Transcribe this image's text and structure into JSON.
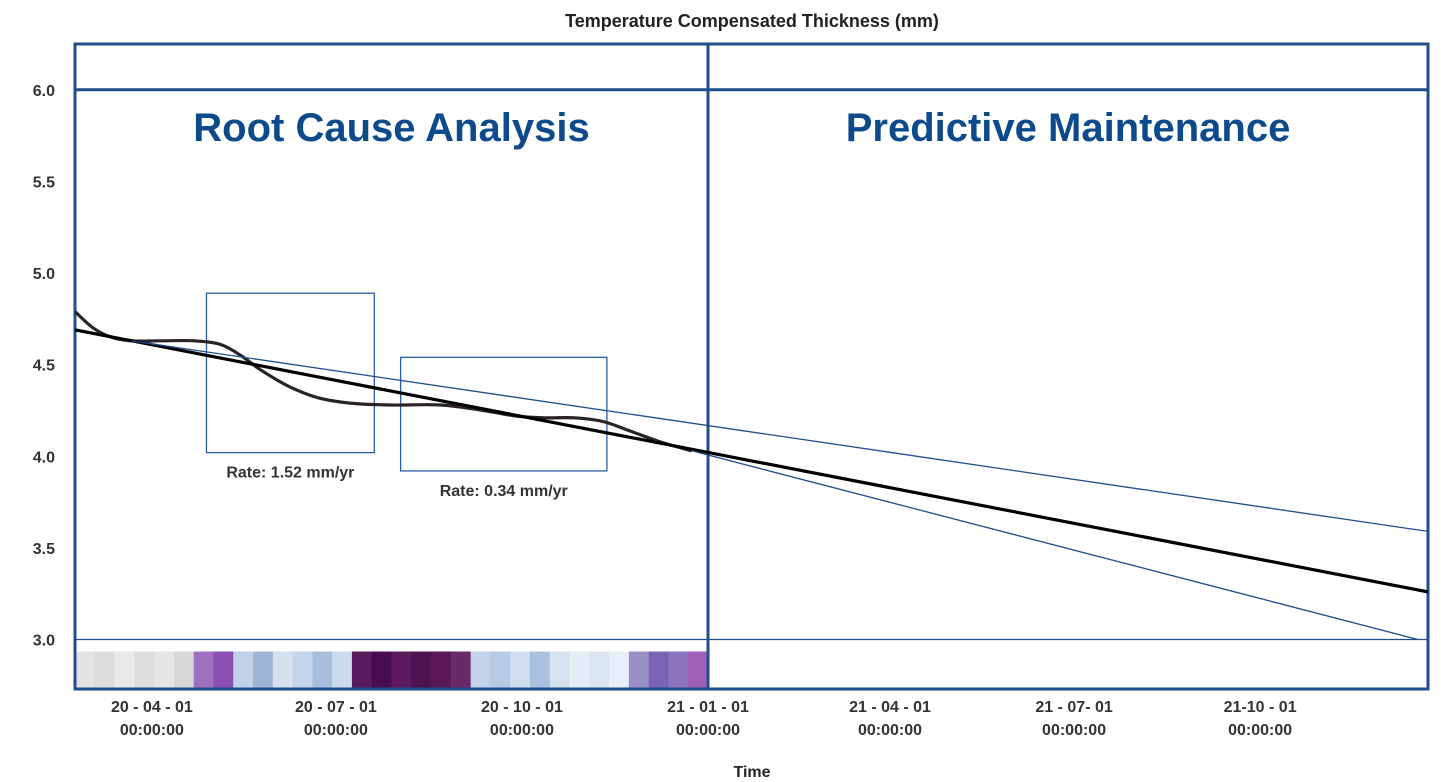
{
  "chart_data": {
    "type": "line",
    "title": "Temperature Compensated Thickness (mm)",
    "xlabel": "Time",
    "ylabel": "",
    "ylim": [
      2.73,
      6.25
    ],
    "xlim": [
      "2020-02-23",
      "2021-12-23"
    ],
    "y_ticks": [
      "6.0",
      "5.5",
      "5.0",
      "4.5",
      "4.0",
      "3.5",
      "3.0"
    ],
    "x_ticks": [
      {
        "date": "2020-04-01",
        "line1": "20 - 04 - 01",
        "line2": "00:00:00"
      },
      {
        "date": "2020-07-01",
        "line1": "20 - 07 - 01",
        "line2": "00:00:00"
      },
      {
        "date": "2020-10-01",
        "line1": "20 - 10 - 01",
        "line2": "00:00:00"
      },
      {
        "date": "2021-01-01",
        "line1": "21 - 01 - 01",
        "line2": "00:00:00"
      },
      {
        "date": "2021-04-01",
        "line1": "21 - 04 - 01",
        "line2": "00:00:00"
      },
      {
        "date": "2021-07-01",
        "line1": "21 - 07- 01",
        "line2": "00:00:00"
      },
      {
        "date": "2021-10-01",
        "line1": "21-10 - 01",
        "line2": "00:00:00"
      }
    ],
    "divider_date": "2021-01-01",
    "sections": {
      "left": "Root Cause Analysis",
      "right": "Predictive Maintenance"
    },
    "reference_line_y": 3.0,
    "series": [
      {
        "kind": "measured",
        "points": [
          [
            "2020-02-23",
            4.79
          ],
          [
            "2020-03-03",
            4.7
          ],
          [
            "2020-03-12",
            4.65
          ],
          [
            "2020-03-22",
            4.63
          ],
          [
            "2020-04-05",
            4.63
          ],
          [
            "2020-04-22",
            4.63
          ],
          [
            "2020-05-05",
            4.61
          ],
          [
            "2020-05-15",
            4.55
          ],
          [
            "2020-05-25",
            4.47
          ],
          [
            "2020-06-08",
            4.38
          ],
          [
            "2020-06-22",
            4.32
          ],
          [
            "2020-07-08",
            4.29
          ],
          [
            "2020-07-28",
            4.28
          ],
          [
            "2020-08-22",
            4.28
          ],
          [
            "2020-09-12",
            4.25
          ],
          [
            "2020-09-28",
            4.22
          ],
          [
            "2020-10-12",
            4.21
          ],
          [
            "2020-10-27",
            4.21
          ],
          [
            "2020-11-10",
            4.19
          ],
          [
            "2020-11-23",
            4.14
          ],
          [
            "2020-12-08",
            4.08
          ],
          [
            "2020-12-24",
            4.03
          ]
        ]
      },
      {
        "kind": "trend",
        "points": [
          [
            "2020-02-23",
            4.69
          ],
          [
            "2021-12-23",
            3.26
          ]
        ]
      },
      {
        "kind": "upper-bound",
        "points": [
          [
            "2020-03-22",
            4.63
          ],
          [
            "2021-12-23",
            3.59
          ]
        ]
      },
      {
        "kind": "lower-bound",
        "points": [
          [
            "2020-12-24",
            4.03
          ],
          [
            "2021-12-18",
            3.0
          ]
        ]
      }
    ],
    "annotations": [
      {
        "label": "Rate: 1.52 mm/yr",
        "x_range": [
          "2020-04-28",
          "2020-07-20"
        ],
        "y_range": [
          4.02,
          4.89
        ]
      },
      {
        "label": "Rate: 0.34 mm/yr",
        "x_range": [
          "2020-08-02",
          "2020-11-12"
        ],
        "y_range": [
          3.92,
          4.54
        ]
      }
    ],
    "heat_strip": {
      "x_range": [
        "2020-02-23",
        "2021-01-01"
      ],
      "colors": [
        "#e3e3e3",
        "#dcdcdc",
        "#e9e9e9",
        "#dedede",
        "#e6e6e6",
        "#d8d8d8",
        "#a070c0",
        "#8a4fb0",
        "#c0d0e6",
        "#9eb4d6",
        "#d6e0ee",
        "#c4d4ea",
        "#a8bedc",
        "#ccdaee",
        "#5a1c5e",
        "#4a0c50",
        "#5e1a60",
        "#4d1250",
        "#5a1858",
        "#6a2a6a",
        "#c4d2ea",
        "#b8c9e4",
        "#d0ddef",
        "#aac0df",
        "#d6e2f0",
        "#e4ecf6",
        "#dce6f3",
        "#e8eff8",
        "#9a8fc8",
        "#7a62b4",
        "#8b74bc",
        "#a060b8"
      ]
    },
    "colors": {
      "frame": "#1f4e8c",
      "section_label": "#0d4a8b",
      "measured": "#2a2224",
      "trend": "#000000",
      "bound": "#1f4e8c",
      "annotation_box": "#2a5ea5"
    }
  }
}
